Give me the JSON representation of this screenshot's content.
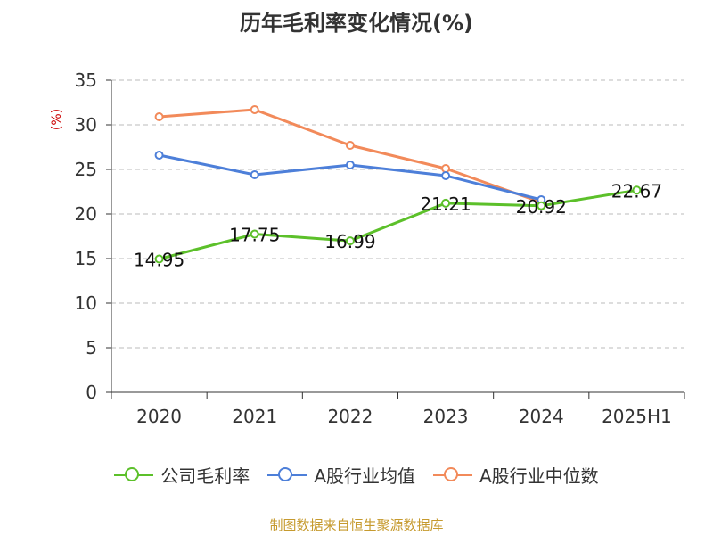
{
  "chart_data": {
    "type": "line",
    "title": "历年毛利率变化情况(%)",
    "ylabel": "(%)",
    "xlabel": "",
    "categories": [
      "2020",
      "2021",
      "2022",
      "2023",
      "2024",
      "2025H1"
    ],
    "ylim": [
      0,
      35
    ],
    "yticks": [
      0,
      5,
      10,
      15,
      20,
      25,
      30,
      35
    ],
    "grid": true,
    "legend_position": "bottom",
    "series": [
      {
        "name": "公司毛利率",
        "color": "#5cc02a",
        "values": [
          14.95,
          17.75,
          16.99,
          21.21,
          20.92,
          22.67
        ],
        "labels": [
          "14.95",
          "17.75",
          "16.99",
          "21.21",
          "20.92",
          "22.67"
        ]
      },
      {
        "name": "A股行业均值",
        "color": "#4d7fd9",
        "values": [
          26.6,
          24.4,
          25.5,
          24.3,
          21.6,
          null
        ]
      },
      {
        "name": "A股行业中位数",
        "color": "#f28a5a",
        "values": [
          30.9,
          31.7,
          27.7,
          25.1,
          21.3,
          null
        ]
      }
    ]
  },
  "source": "制图数据来自恒生聚源数据库"
}
